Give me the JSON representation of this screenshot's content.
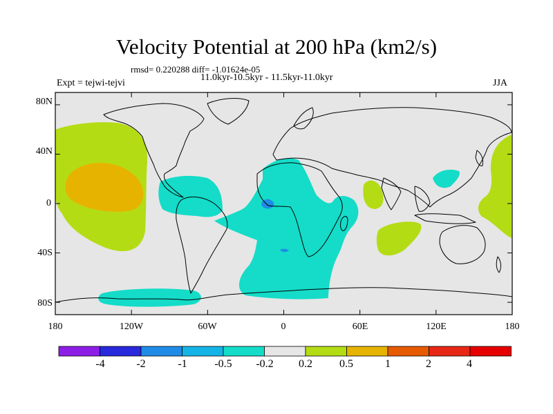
{
  "title": "Velocity Potential at 200 hPa (km2/s)",
  "stats_line": "rmsd= 0.220288 diff= -1.01624e-05",
  "periods_line": "11.0kyr-10.5kyr - 11.5kyr-11.0kyr",
  "experiment": "Expt = tejwi-tejvi",
  "season": "JJA",
  "map": {
    "projection": "cylindrical equidistant",
    "lon_range": [
      -180,
      180
    ],
    "lat_range": [
      -90,
      90
    ],
    "lat_ticks": [
      "80N",
      "40N",
      "0",
      "40S",
      "80S"
    ],
    "lon_ticks": [
      "180",
      "120W",
      "60W",
      "0",
      "60E",
      "120E",
      "180"
    ],
    "colors": {
      "background": "#ffffff",
      "ocean_neutral": "#e6e6e6",
      "coast": "#000000"
    }
  },
  "colorbar": {
    "labels": [
      "-4",
      "-2",
      "-1",
      "-0.5",
      "-0.2",
      "0.2",
      "0.5",
      "1",
      "2",
      "4"
    ],
    "colors": [
      "#8c1ee6",
      "#2828dc",
      "#1e8ce6",
      "#14b4e6",
      "#14dcc8",
      "#e6e6e6",
      "#b4dc14",
      "#e6b400",
      "#e65a00",
      "#e62814",
      "#e60000"
    ]
  },
  "chart_data": {
    "type": "heatmap",
    "title": "Velocity Potential at 200 hPa (km2/s)",
    "variable": "velocity potential anomaly",
    "units": "km2/s",
    "level": "200 hPa",
    "season": "JJA",
    "contour_levels": [
      -4,
      -2,
      -1,
      -0.5,
      -0.2,
      0.2,
      0.5,
      1,
      2,
      4
    ],
    "regions": [
      {
        "name": "North Pacific",
        "category": "0.2 to 0.5"
      },
      {
        "name": "Central North Pacific core",
        "category": "0.5 to 1"
      },
      {
        "name": "Caribbean / Central America",
        "category": "-0.5 to -0.2"
      },
      {
        "name": "Africa / South Atlantic",
        "category": "-0.5 to -0.2"
      },
      {
        "name": "Gulf of Guinea core",
        "category": "-1 to -0.5"
      },
      {
        "name": "Madagascar region",
        "category": "-0.5 to -0.2"
      },
      {
        "name": "Arabian Sea",
        "category": "0.2 to 0.5"
      },
      {
        "name": "Southern Indian Ocean",
        "category": "0.2 to 0.5"
      },
      {
        "name": "Philippines",
        "category": "-0.5 to -0.2"
      },
      {
        "name": "Western North Pacific",
        "category": "0.2 to 0.5"
      },
      {
        "name": "Antarctic coast near 120W",
        "category": "-0.5 to -0.2"
      }
    ]
  }
}
